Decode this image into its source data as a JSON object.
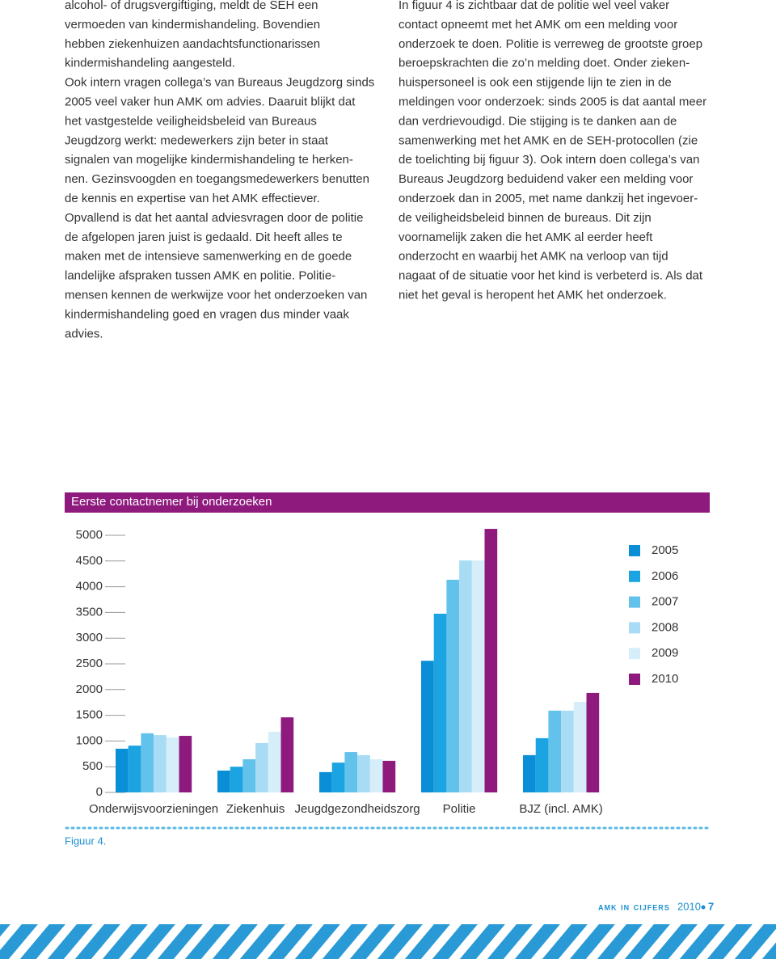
{
  "left_column": {
    "lines": [
      "alcohol- of drugsvergiftiging, meldt de SEH een",
      "vermoeden van kindermishandeling. Bovendien",
      "hebben ziekenhuizen aandachtsfunctionarissen",
      "kindermishandeling aangesteld.",
      "Ook intern vragen collega’s van Bureaus Jeugdzorg sinds",
      "2005 veel vaker hun AMK om advies. Daaruit blijkt dat",
      "het vastgestelde veiligheidsbeleid van Bureaus",
      "Jeugdzorg werkt: medewerkers zijn beter in staat",
      "signalen van mogelijke kindermishandeling te herken-",
      "nen. Gezinsvoogden en toegangsmedewerkers benutten",
      "de kennis en expertise van het AMK effectiever.",
      "Opvallend is dat het aantal adviesvragen door de politie",
      "de afgelopen jaren juist is gedaald. Dit heeft alles te",
      "maken met de intensieve samenwerking en de goede",
      "landelijke afspraken tussen AMK en politie. Politie-",
      "mensen kennen de werkwijze voor het onderzoeken van",
      "kindermishandeling goed en vragen dus minder vaak",
      "advies."
    ]
  },
  "right_column": {
    "lines": [
      "In figuur 4 is zichtbaar dat de politie wel veel vaker",
      "contact opneemt met het AMK om een melding voor",
      "onderzoek te doen. Politie is verreweg de grootste groep",
      "beroepskrachten die zo’n melding doet. Onder zieken-",
      "huispersoneel is ook een stijgende lijn te zien in de",
      "meldingen voor onderzoek: sinds 2005 is dat aantal meer",
      "dan verdrievoudigd. Die stijging is te danken aan de",
      "samenwerking met het AMK en de SEH-protocollen (zie",
      "de toelichting bij figuur 3). Ook intern doen collega’s van",
      "Bureaus Jeugdzorg beduidend vaker een melding voor",
      "onderzoek dan in 2005, met name dankzij het ingevoer-",
      "de veiligheidsbeleid binnen de bureaus. Dit zijn",
      "voornamelijk zaken die het AMK al eerder heeft",
      "onderzocht en waarbij het AMK na verloop van tijd",
      "nagaat of de situatie voor het kind is verbeterd is. Als dat",
      "niet het geval is heropent het AMK het onderzoek."
    ]
  },
  "chart_data": {
    "type": "bar",
    "title": "Eerste contactnemer bij onderzoeken",
    "categories": [
      "Onderwijsvoorzieningen",
      "Ziekenhuis",
      "Jeugdgezondheidszorg",
      "Politie",
      "BJZ (incl. AMK)"
    ],
    "series": [
      {
        "name": "2005",
        "color": "#0a8fd6",
        "values": [
          850,
          425,
          395,
          2560,
          725
        ]
      },
      {
        "name": "2006",
        "color": "#1ca4e2",
        "values": [
          910,
          500,
          580,
          3475,
          1055
        ]
      },
      {
        "name": "2007",
        "color": "#62c2eb",
        "values": [
          1150,
          645,
          785,
          4135,
          1590
        ]
      },
      {
        "name": "2008",
        "color": "#a8dcf4",
        "values": [
          1115,
          960,
          725,
          4510,
          1590
        ]
      },
      {
        "name": "2009",
        "color": "#d6eefa",
        "values": [
          1070,
          1180,
          645,
          4510,
          1760
        ]
      },
      {
        "name": "2010",
        "color": "#8e1a7e",
        "values": [
          1100,
          1460,
          615,
          5125,
          1935
        ]
      }
    ],
    "ylim": [
      0,
      5200
    ],
    "yticks": [
      0,
      500,
      1000,
      1500,
      2000,
      2500,
      3000,
      3500,
      4000,
      4500,
      5000
    ],
    "legend": "right"
  },
  "caption": "Figuur 4.",
  "footer": {
    "label": "amk in cijfers",
    "year": "2010",
    "page": "7"
  }
}
